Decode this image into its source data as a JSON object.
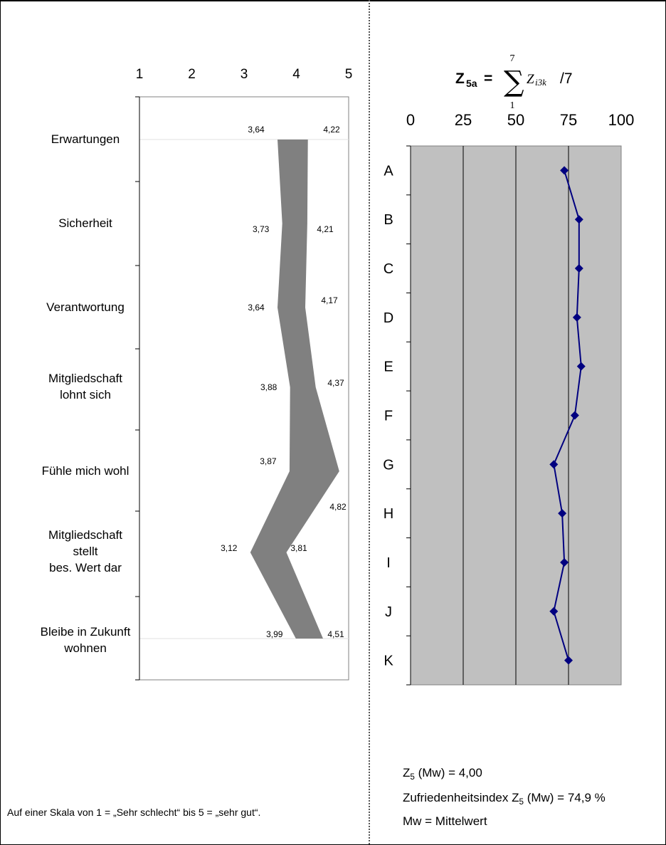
{
  "left_chart": {
    "type": "area",
    "x_ticks": [
      "1",
      "2",
      "3",
      "4",
      "5"
    ],
    "xlim": [
      1,
      5
    ],
    "categories": [
      [
        "Erwartungen"
      ],
      [
        "Sicherheit"
      ],
      [
        "Verantwortung"
      ],
      [
        "Mitgliedschaft",
        "lohnt sich"
      ],
      [
        "Fühle mich wohl"
      ],
      [
        "Mitgliedschaft",
        "stellt",
        "bes. Wert dar"
      ],
      [
        "Bleibe in Zukunft",
        "wohnen"
      ]
    ],
    "lower": [
      3.64,
      3.73,
      3.64,
      3.88,
      3.87,
      3.12,
      3.99
    ],
    "upper": [
      4.22,
      4.21,
      4.17,
      4.37,
      4.82,
      3.81,
      4.51
    ],
    "lower_labels": [
      "3,64",
      "3,73",
      "3,64",
      "3,88",
      "3,87",
      "3,12",
      "3,99"
    ],
    "upper_labels": [
      "4,22",
      "4,21",
      "4,17",
      "4,37",
      "4,82",
      "3,81",
      "4,51"
    ],
    "fill_color": "#808080"
  },
  "right_chart": {
    "type": "line",
    "formula": {
      "lhs": "Z",
      "lhs_sub": "5a",
      "eq": " =",
      "sum_top": "7",
      "sum_bottom": "1",
      "sigma": "∑",
      "term": "Z",
      "term_sub": "i3k",
      "divisor": "/7"
    },
    "x_ticks": [
      "0",
      "25",
      "50",
      "75",
      "100"
    ],
    "xlim": [
      0,
      100
    ],
    "categories": [
      "A",
      "B",
      "C",
      "D",
      "E",
      "F",
      "G",
      "H",
      "I",
      "J",
      "K"
    ],
    "values": [
      73,
      80,
      80,
      79,
      81,
      78,
      68,
      72,
      73,
      68,
      75
    ],
    "plot_bg": "#c0c0c0",
    "series_color": "#000080"
  },
  "notes": {
    "mean_prefix": "Z",
    "mean_sub": "5",
    "mean_suffix": " (Mw) = 4,00",
    "index_prefix": "Zufriedenheitsindex Z",
    "index_sub": "5",
    "index_suffix": " (Mw) = 74,9 %",
    "legend_mw": "Mw = Mittelwert"
  },
  "footnote": "Auf einer Skala von 1 = „Sehr schlecht“ bis 5 = „sehr gut“."
}
